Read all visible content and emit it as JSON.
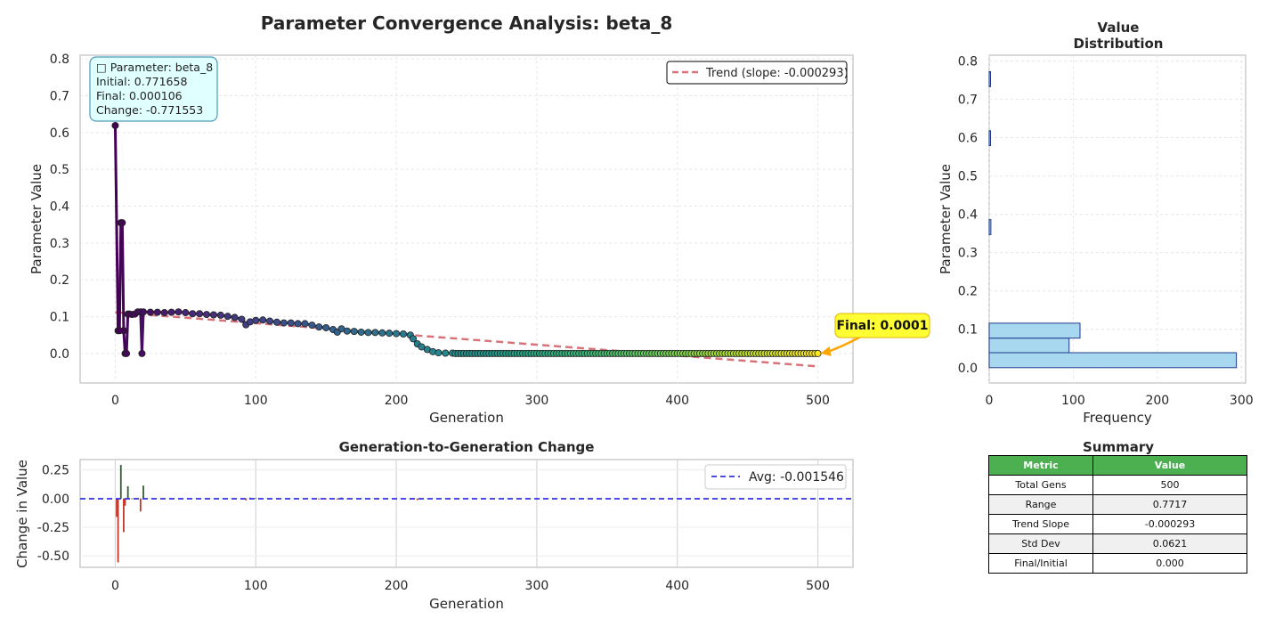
{
  "main_title": "Parameter Convergence Analysis: beta_8",
  "colors": {
    "trend": "#d9737a",
    "final_annotation_bg": "#ffff33",
    "final_annotation_arrow": "#ffa500",
    "info_box_bg": "#e0ffff",
    "info_box_border": "#4a9cc0",
    "hist_fill": "#a8d8ef",
    "hist_edge": "#1f3a8a",
    "avg_line": "#3333dd",
    "pos_change": "#2f5f2f",
    "neg_change": "#c0392b",
    "table_header": "#4caf50"
  },
  "main_panel": {
    "info_box": {
      "line1": "□ Parameter: beta_8",
      "line2": "Initial: 0.771658",
      "line3": "Final: 0.000106",
      "line4": "Change: -0.771553"
    },
    "legend_label": "Trend (slope: -0.000293)",
    "final_label": "Final: 0.0001"
  },
  "hist_panel": {
    "title_line1": "Value",
    "title_line2": "Distribution"
  },
  "change_panel": {
    "title": "Generation-to-Generation Change",
    "legend_label": "Avg: -0.001546"
  },
  "summary": {
    "title": "Summary",
    "headers": [
      "Metric",
      "Value"
    ],
    "rows": [
      [
        "Total Gens",
        "500"
      ],
      [
        "Range",
        "0.7717"
      ],
      [
        "Trend Slope",
        "-0.000293"
      ],
      [
        "Std Dev",
        "0.0621"
      ],
      [
        "Final/Initial",
        "0.000"
      ]
    ]
  },
  "chart_data": [
    {
      "type": "line",
      "xlabel": "Generation",
      "ylabel": "Parameter Value",
      "xlim": [
        -25,
        525
      ],
      "ylim": [
        -0.08,
        0.81
      ],
      "xticks": [
        0,
        100,
        200,
        300,
        400,
        500
      ],
      "yticks": [
        0.0,
        0.1,
        0.2,
        0.3,
        0.4,
        0.5,
        0.6,
        0.7,
        0.8
      ],
      "grid": true,
      "legend_position": "top-right",
      "series": [
        {
          "name": "Trend (slope: -0.000293)",
          "style": "dashed",
          "x": [
            0,
            500
          ],
          "y": [
            0.112,
            -0.035
          ]
        }
      ],
      "points": [
        [
          0,
          0.619
        ],
        [
          2,
          0.062
        ],
        [
          3,
          0.062
        ],
        [
          4,
          0.355
        ],
        [
          5,
          0.355
        ],
        [
          6,
          0.062
        ],
        [
          7,
          0.0
        ],
        [
          8,
          0.0
        ],
        [
          9,
          0.107
        ],
        [
          10,
          0.107
        ],
        [
          12,
          0.106
        ],
        [
          14,
          0.107
        ],
        [
          16,
          0.113
        ],
        [
          18,
          0.113
        ],
        [
          19,
          0.0
        ],
        [
          20,
          0.113
        ],
        [
          25,
          0.112
        ],
        [
          30,
          0.112
        ],
        [
          35,
          0.111
        ],
        [
          40,
          0.112
        ],
        [
          45,
          0.113
        ],
        [
          50,
          0.111
        ],
        [
          55,
          0.108
        ],
        [
          60,
          0.108
        ],
        [
          65,
          0.106
        ],
        [
          70,
          0.105
        ],
        [
          75,
          0.104
        ],
        [
          80,
          0.101
        ],
        [
          85,
          0.098
        ],
        [
          90,
          0.093
        ],
        [
          93,
          0.078
        ],
        [
          96,
          0.086
        ],
        [
          100,
          0.09
        ],
        [
          105,
          0.091
        ],
        [
          110,
          0.088
        ],
        [
          115,
          0.085
        ],
        [
          120,
          0.083
        ],
        [
          125,
          0.083
        ],
        [
          130,
          0.081
        ],
        [
          135,
          0.081
        ],
        [
          140,
          0.077
        ],
        [
          145,
          0.072
        ],
        [
          150,
          0.07
        ],
        [
          155,
          0.065
        ],
        [
          158,
          0.058
        ],
        [
          161,
          0.067
        ],
        [
          165,
          0.061
        ],
        [
          170,
          0.06
        ],
        [
          175,
          0.058
        ],
        [
          180,
          0.057
        ],
        [
          185,
          0.057
        ],
        [
          190,
          0.056
        ],
        [
          195,
          0.055
        ],
        [
          200,
          0.054
        ],
        [
          205,
          0.053
        ],
        [
          210,
          0.05
        ],
        [
          212,
          0.04
        ],
        [
          215,
          0.026
        ],
        [
          218,
          0.018
        ],
        [
          222,
          0.011
        ],
        [
          226,
          0.005
        ],
        [
          230,
          0.002
        ],
        [
          235,
          0.001
        ],
        [
          240,
          0.001
        ]
      ],
      "converged_value": 0.0001,
      "converged_from": 240,
      "final_point": [
        500,
        0.0001
      ],
      "final_annotation": "Final: 0.0001"
    },
    {
      "type": "bar",
      "orientation": "horizontal",
      "xlabel": "Frequency",
      "ylabel": "Parameter Value",
      "xlim": [
        0,
        305
      ],
      "ylim": [
        -0.04,
        0.815
      ],
      "xticks": [
        0,
        100,
        200,
        300
      ],
      "yticks": [
        0.0,
        0.1,
        0.2,
        0.3,
        0.4,
        0.5,
        0.6,
        0.7,
        0.8
      ],
      "bins": [
        {
          "low": 0.0,
          "high": 0.039,
          "count": 294
        },
        {
          "low": 0.039,
          "high": 0.077,
          "count": 95
        },
        {
          "low": 0.077,
          "high": 0.116,
          "count": 108
        },
        {
          "low": 0.347,
          "high": 0.386,
          "count": 2
        },
        {
          "low": 0.579,
          "high": 0.618,
          "count": 1
        },
        {
          "low": 0.733,
          "high": 0.772,
          "count": 1
        }
      ]
    },
    {
      "type": "bar",
      "xlabel": "Generation",
      "ylabel": "Change in Value",
      "xlim": [
        -25,
        525
      ],
      "ylim": [
        -0.6,
        0.34
      ],
      "xticks": [
        0,
        100,
        200,
        300,
        400,
        500
      ],
      "yticks": [
        -0.5,
        -0.25,
        0.0,
        0.25
      ],
      "legend_position": "top-right",
      "avg": -0.001546,
      "changes": [
        [
          1,
          -0.16
        ],
        [
          2,
          -0.557
        ],
        [
          4,
          0.293
        ],
        [
          6,
          -0.293
        ],
        [
          7,
          -0.062
        ],
        [
          9,
          0.107
        ],
        [
          10,
          -0.004
        ],
        [
          12,
          0.001
        ],
        [
          18,
          -0.113
        ],
        [
          20,
          0.113
        ],
        [
          90,
          -0.01
        ],
        [
          93,
          -0.015
        ],
        [
          96,
          0.008
        ],
        [
          100,
          0.004
        ],
        [
          105,
          -0.006
        ],
        [
          110,
          -0.005
        ],
        [
          115,
          -0.004
        ],
        [
          145,
          -0.008
        ],
        [
          150,
          -0.006
        ],
        [
          158,
          -0.009
        ],
        [
          161,
          0.009
        ],
        [
          165,
          -0.006
        ],
        [
          210,
          -0.01
        ],
        [
          212,
          -0.01
        ],
        [
          215,
          -0.014
        ],
        [
          218,
          -0.008
        ]
      ]
    }
  ]
}
